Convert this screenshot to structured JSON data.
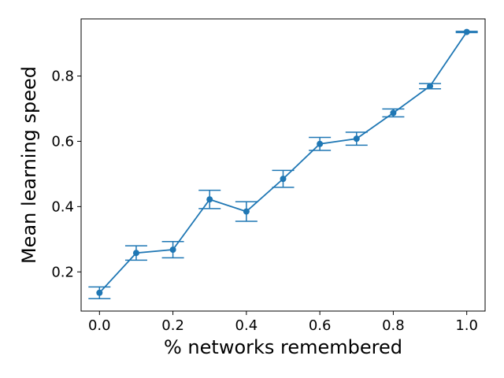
{
  "chart_data": {
    "type": "line",
    "title": "",
    "xlabel": "% networks remembered",
    "ylabel": "Mean learning speed",
    "xlim": [
      -0.05,
      1.05
    ],
    "ylim": [
      0.08,
      0.975
    ],
    "xticks": [
      0.0,
      0.2,
      0.4,
      0.6,
      0.8,
      1.0
    ],
    "xtick_labels": [
      "0.0",
      "0.2",
      "0.4",
      "0.6",
      "0.8",
      "1.0"
    ],
    "yticks": [
      0.2,
      0.4,
      0.6,
      0.8
    ],
    "ytick_labels": [
      "0.2",
      "0.4",
      "0.6",
      "0.8"
    ],
    "grid": false,
    "color": "#1f77b4",
    "series": [
      {
        "x": [
          0.0,
          0.1,
          0.2,
          0.3,
          0.4,
          0.5,
          0.6,
          0.7,
          0.8,
          0.9,
          1.0
        ],
        "y": [
          0.136,
          0.258,
          0.268,
          0.422,
          0.385,
          0.485,
          0.592,
          0.608,
          0.687,
          0.769,
          0.935
        ],
        "err": [
          0.018,
          0.022,
          0.025,
          0.028,
          0.03,
          0.026,
          0.02,
          0.02,
          0.012,
          0.008,
          0.002
        ]
      }
    ]
  }
}
